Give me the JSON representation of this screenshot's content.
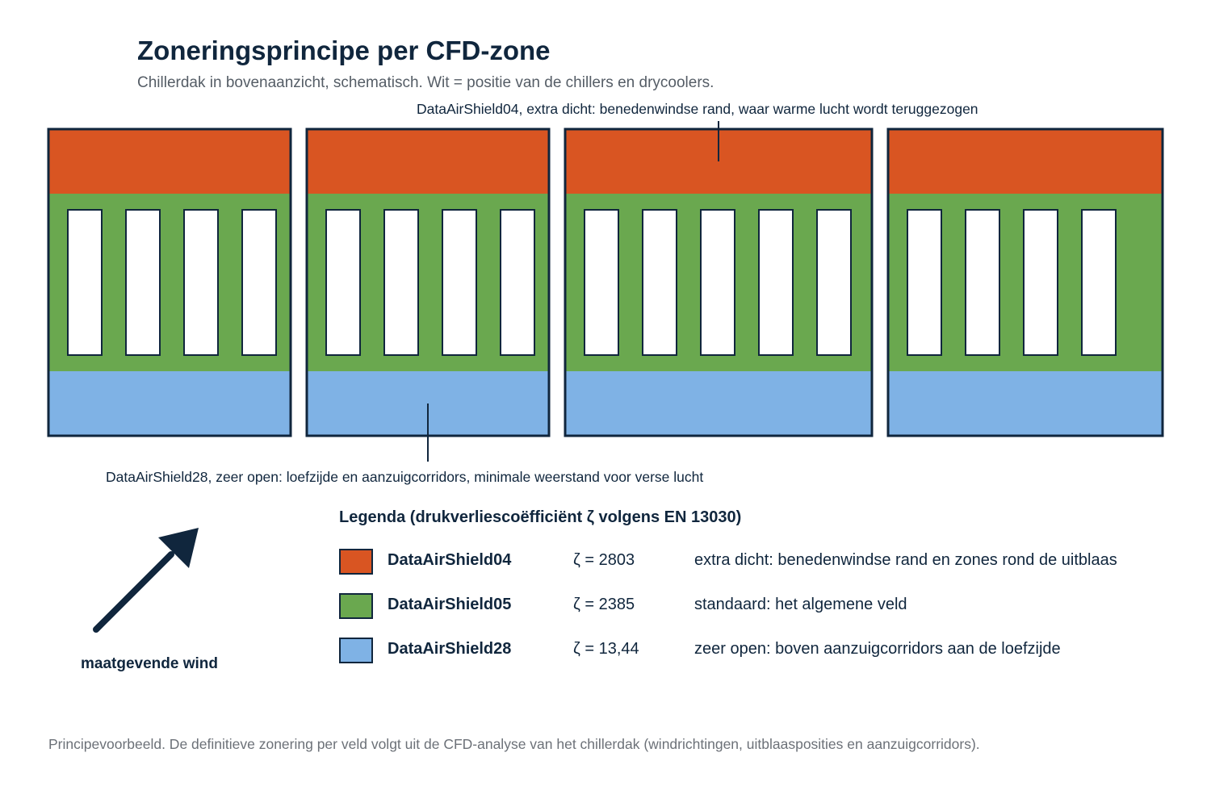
{
  "header": {
    "title": "Zoneringsprincipe per CFD-zone",
    "subtitle": "Chillerdak in bovenaanzicht, schematisch. Wit = positie van de chillers en drycoolers."
  },
  "annotations": {
    "top": "DataAirShield04, extra dicht: benedenwindse rand, waar warme lucht wordt teruggezogen",
    "bottom": "DataAirShield28, zeer open: loefzijde en aanzuigcorridors, minimale weerstand voor verse lucht"
  },
  "diagram": {
    "blocks": [
      {
        "units": 4
      },
      {
        "units": 4
      },
      {
        "units": 5
      },
      {
        "units": 4
      }
    ]
  },
  "legend": {
    "title": "Legenda (drukverliescoëfficiënt ζ volgens EN 13030)",
    "items": [
      {
        "name": "DataAirShield04",
        "zeta": "ζ = 2803",
        "description": "extra dicht: benedenwindse rand en zones rond de uitblaas",
        "color": "#d95522"
      },
      {
        "name": "DataAirShield05",
        "zeta": "ζ = 2385",
        "description": "standaard: het algemene veld",
        "color": "#6aa84f"
      },
      {
        "name": "DataAirShield28",
        "zeta": "ζ = 13,44",
        "description": "zeer open: boven aanzuigcorridors aan de loefzijde",
        "color": "#7fb2e5"
      }
    ]
  },
  "wind": {
    "label": "maatgevende wind",
    "icon": "wind-direction-arrow-icon"
  },
  "footnote": "Principevoorbeeld. De definitieve zonering per veld volgt uit de CFD-analyse van het chillerdak (windrichtingen, uitblaasposities en aanzuigcorridors).",
  "colors": {
    "outline": "#10263d",
    "dense": "#d95522",
    "standard": "#6aa84f",
    "open": "#7fb2e5",
    "unit": "#ffffff"
  }
}
